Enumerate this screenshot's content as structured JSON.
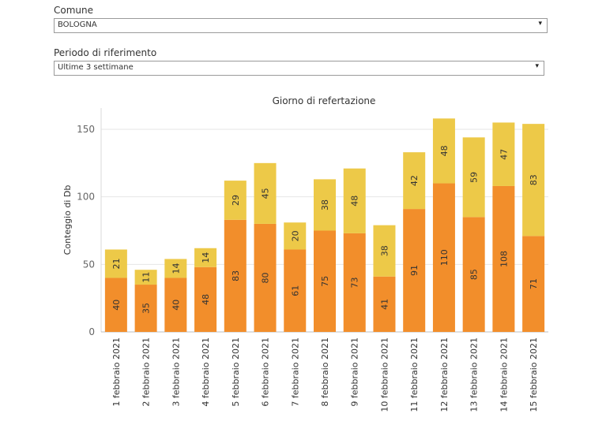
{
  "filters": {
    "comune": {
      "label": "Comune",
      "value": "BOLOGNA",
      "arrow": "▾"
    },
    "periodo": {
      "label": "Periodo di riferimento",
      "value": "Ultime 3 settimane",
      "arrow": "▾"
    }
  },
  "chart_data": {
    "type": "bar",
    "stacked": true,
    "title": "Giorno di refertazione",
    "xlabel": "",
    "ylabel": "Conteggio di Db",
    "ylim": [
      0,
      160
    ],
    "yticks": [
      0,
      50,
      100,
      150
    ],
    "grid": "horizontal",
    "categories": [
      "1 febbraio 2021",
      "2 febbraio 2021",
      "3 febbraio 2021",
      "4 febbraio 2021",
      "5 febbraio 2021",
      "6 febbraio 2021",
      "7 febbraio 2021",
      "8 febbraio 2021",
      "9 febbraio 2021",
      "10 febbraio 2021",
      "11 febbraio 2021",
      "12 febbraio 2021",
      "13 febbraio 2021",
      "14 febbraio 2021",
      "15 febbraio 2021"
    ],
    "series": [
      {
        "color": "#f28e2b",
        "values": [
          40,
          35,
          40,
          48,
          83,
          80,
          61,
          75,
          73,
          41,
          91,
          110,
          85,
          108,
          71
        ]
      },
      {
        "color": "#edc948",
        "values": [
          21,
          11,
          14,
          14,
          29,
          45,
          20,
          38,
          48,
          38,
          42,
          48,
          59,
          47,
          83
        ]
      }
    ]
  }
}
